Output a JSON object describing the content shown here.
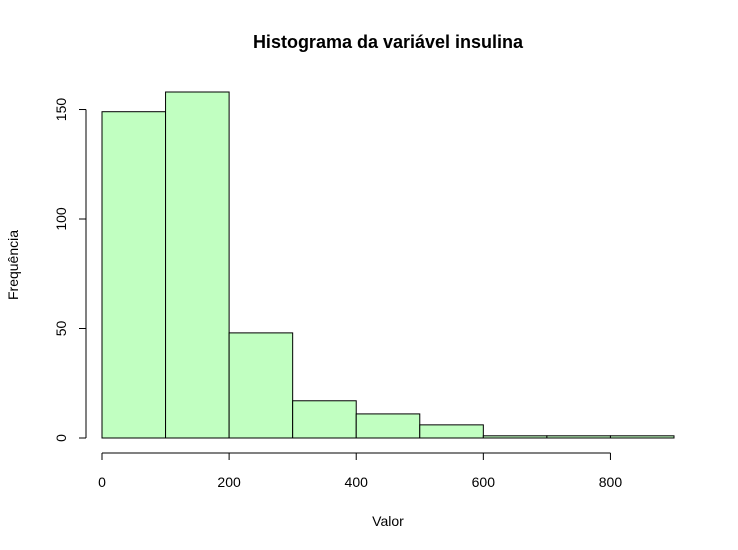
{
  "chart_data": {
    "type": "bar",
    "title": "Histograma da variável insulina",
    "xlabel": "Valor",
    "ylabel": "Frequência",
    "bar_color": "#c1ffc1",
    "bins": [
      {
        "start": 0,
        "end": 100,
        "count": 149
      },
      {
        "start": 100,
        "end": 200,
        "count": 158
      },
      {
        "start": 200,
        "end": 300,
        "count": 48
      },
      {
        "start": 300,
        "end": 400,
        "count": 17
      },
      {
        "start": 400,
        "end": 500,
        "count": 11
      },
      {
        "start": 500,
        "end": 600,
        "count": 6
      },
      {
        "start": 600,
        "end": 700,
        "count": 1
      },
      {
        "start": 700,
        "end": 800,
        "count": 1
      },
      {
        "start": 800,
        "end": 900,
        "count": 1
      }
    ],
    "xlim": [
      0,
      900
    ],
    "ylim": [
      0,
      158
    ],
    "x_ticks": [
      0,
      200,
      400,
      600,
      800
    ],
    "y_ticks": [
      0,
      50,
      100,
      150
    ],
    "grid": false,
    "legend": "none"
  }
}
